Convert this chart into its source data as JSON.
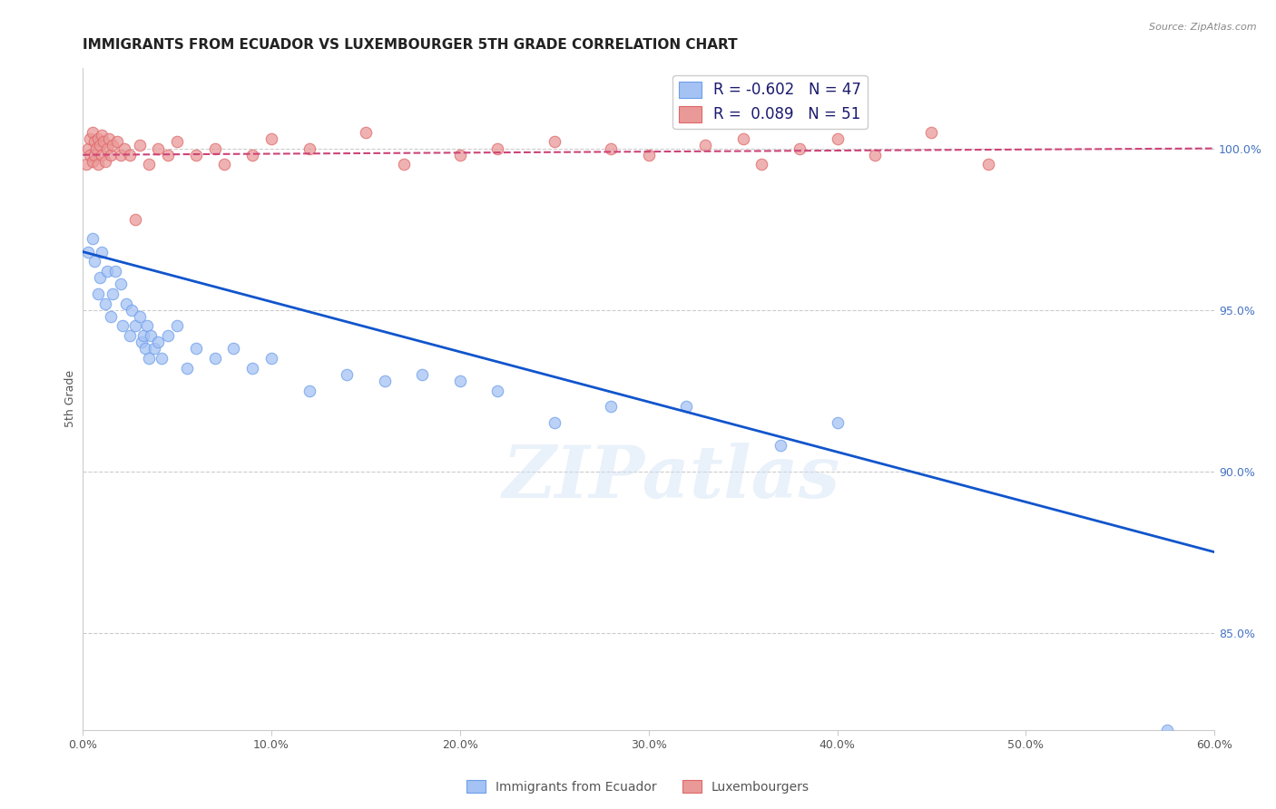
{
  "title": "IMMIGRANTS FROM ECUADOR VS LUXEMBOURGER 5TH GRADE CORRELATION CHART",
  "source": "Source: ZipAtlas.com",
  "ylabel": "5th Grade",
  "xlabel_vals": [
    0.0,
    10.0,
    20.0,
    30.0,
    40.0,
    50.0,
    60.0
  ],
  "xlim": [
    0.0,
    60.0
  ],
  "ylim": [
    82.0,
    102.5
  ],
  "blue_color": "#a4c2f4",
  "pink_color": "#ea9999",
  "blue_edge_color": "#6d9eeb",
  "pink_edge_color": "#e06666",
  "trendline_blue_color": "#1155cc",
  "trendline_pink_color": "#cc4477",
  "legend_R_blue": "-0.602",
  "legend_N_blue": "47",
  "legend_R_pink": "0.089",
  "legend_N_pink": "51",
  "legend_label_blue": "Immigrants from Ecuador",
  "legend_label_pink": "Luxembourgers",
  "watermark": "ZIPatlas",
  "blue_scatter_x": [
    0.3,
    0.5,
    0.6,
    0.8,
    0.9,
    1.0,
    1.2,
    1.3,
    1.5,
    1.6,
    1.7,
    2.0,
    2.1,
    2.3,
    2.5,
    2.6,
    2.8,
    3.0,
    3.1,
    3.2,
    3.3,
    3.4,
    3.5,
    3.6,
    3.8,
    4.0,
    4.2,
    4.5,
    5.0,
    5.5,
    6.0,
    7.0,
    8.0,
    9.0,
    10.0,
    12.0,
    14.0,
    16.0,
    18.0,
    20.0,
    22.0,
    25.0,
    28.0,
    32.0,
    37.0,
    40.0,
    57.5
  ],
  "blue_scatter_y": [
    96.8,
    97.2,
    96.5,
    95.5,
    96.0,
    96.8,
    95.2,
    96.2,
    94.8,
    95.5,
    96.2,
    95.8,
    94.5,
    95.2,
    94.2,
    95.0,
    94.5,
    94.8,
    94.0,
    94.2,
    93.8,
    94.5,
    93.5,
    94.2,
    93.8,
    94.0,
    93.5,
    94.2,
    94.5,
    93.2,
    93.8,
    93.5,
    93.8,
    93.2,
    93.5,
    92.5,
    93.0,
    92.8,
    93.0,
    92.8,
    92.5,
    91.5,
    92.0,
    92.0,
    90.8,
    91.5,
    82.0
  ],
  "pink_scatter_x": [
    0.2,
    0.3,
    0.4,
    0.4,
    0.5,
    0.5,
    0.6,
    0.6,
    0.7,
    0.8,
    0.8,
    0.9,
    1.0,
    1.0,
    1.1,
    1.2,
    1.3,
    1.4,
    1.5,
    1.6,
    1.8,
    2.0,
    2.2,
    2.5,
    2.8,
    3.0,
    3.5,
    4.0,
    4.5,
    5.0,
    6.0,
    7.0,
    7.5,
    9.0,
    10.0,
    12.0,
    15.0,
    17.0,
    20.0,
    22.0,
    25.0,
    28.0,
    30.0,
    33.0,
    35.0,
    36.0,
    38.0,
    40.0,
    42.0,
    45.0,
    48.0
  ],
  "pink_scatter_y": [
    99.5,
    100.0,
    100.3,
    99.8,
    100.5,
    99.6,
    100.2,
    99.8,
    100.0,
    100.3,
    99.5,
    100.1,
    100.4,
    99.8,
    100.2,
    99.6,
    100.0,
    100.3,
    99.8,
    100.1,
    100.2,
    99.8,
    100.0,
    99.8,
    97.8,
    100.1,
    99.5,
    100.0,
    99.8,
    100.2,
    99.8,
    100.0,
    99.5,
    99.8,
    100.3,
    100.0,
    100.5,
    99.5,
    99.8,
    100.0,
    100.2,
    100.0,
    99.8,
    100.1,
    100.3,
    99.5,
    100.0,
    100.3,
    99.8,
    100.5,
    99.5
  ],
  "blue_trend_x": [
    0.0,
    60.0
  ],
  "blue_trend_y": [
    96.8,
    87.5
  ],
  "pink_trend_x": [
    0.0,
    60.0
  ],
  "pink_trend_y": [
    99.8,
    100.0
  ],
  "grid_color": "#cccccc",
  "background_color": "#ffffff",
  "title_fontsize": 11,
  "axis_label_fontsize": 9,
  "tick_fontsize": 9,
  "right_axis_color": "#4472c4",
  "marker_size": 9
}
